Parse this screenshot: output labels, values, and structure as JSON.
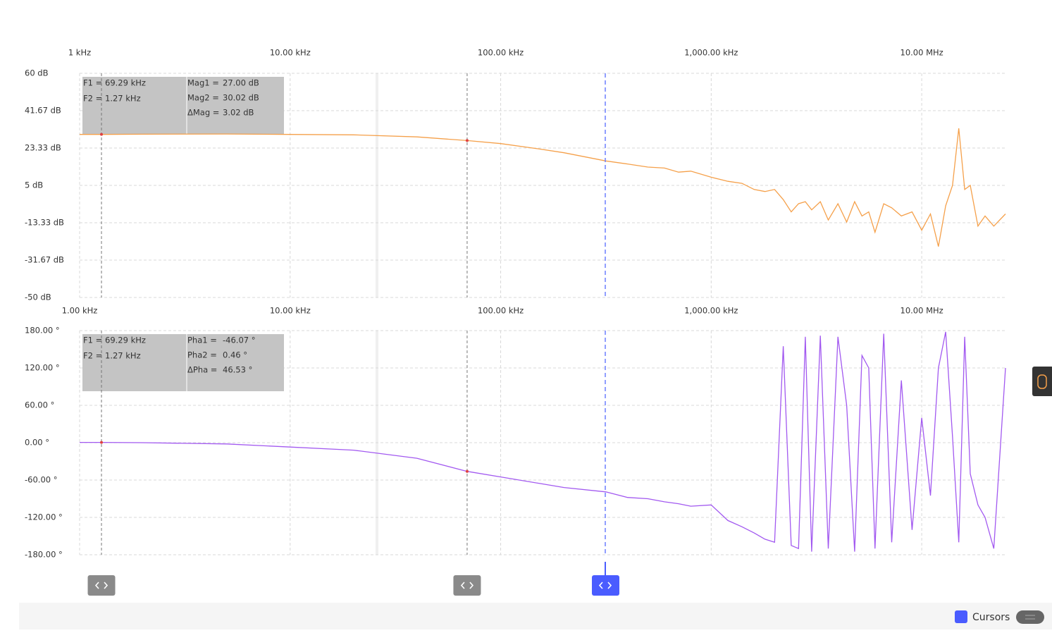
{
  "chart_data": [
    {
      "type": "line",
      "x_scale": "log",
      "grid": true,
      "xlim": [
        1000,
        25000000
      ],
      "xticks": [
        {
          "value": 1000,
          "label": "1 kHz"
        },
        {
          "value": 10000,
          "label": "10.00 kHz"
        },
        {
          "value": 100000,
          "label": "100.00 kHz"
        },
        {
          "value": 1000000,
          "label": "1,000.00 kHz"
        },
        {
          "value": 10000000,
          "label": "10.00 MHz"
        }
      ],
      "ylim": [
        -50,
        60
      ],
      "yticks": [
        {
          "value": 60,
          "label": "60 dB"
        },
        {
          "value": 41.67,
          "label": "41.67 dB"
        },
        {
          "value": 23.33,
          "label": "23.33 dB"
        },
        {
          "value": 5,
          "label": "5 dB"
        },
        {
          "value": -13.33,
          "label": "-13.33 dB"
        },
        {
          "value": -31.67,
          "label": "-31.67 dB"
        },
        {
          "value": -50,
          "label": "-50 dB"
        }
      ],
      "x": [
        1000,
        1270,
        2000,
        5000,
        10000,
        20000,
        40000,
        69290,
        100000,
        150000,
        200000,
        316000,
        400000,
        500000,
        600000,
        700000,
        800000,
        1000000,
        1200000,
        1400000,
        1600000,
        1800000,
        2000000,
        2200000,
        2400000,
        2600000,
        2800000,
        3000000,
        3300000,
        3600000,
        4000000,
        4400000,
        4800000,
        5200000,
        5600000,
        6000000,
        6600000,
        7200000,
        8000000,
        9000000,
        10000000,
        11000000,
        12000000,
        13000000,
        14000000,
        15000000,
        16000000,
        17000000,
        18500000,
        20000000,
        22000000,
        25000000
      ],
      "series": [
        {
          "color": "#f5a04a",
          "values": [
            30,
            30.02,
            30.1,
            30.2,
            30,
            29.8,
            28.8,
            27,
            25.5,
            23,
            21,
            17,
            15.5,
            14,
            13.5,
            11.5,
            12,
            9,
            7,
            6,
            3,
            2,
            3,
            -2,
            -8,
            -4,
            -3,
            -7,
            -3,
            -12,
            -4,
            -13,
            -3,
            -10,
            -8,
            -18,
            -4,
            -6,
            -10,
            -8,
            -17,
            -9,
            -25,
            -5,
            5,
            33,
            3,
            5,
            -15,
            -10,
            -15,
            -9
          ]
        }
      ],
      "cursors": [
        {
          "label": "F1 =",
          "x": 69290,
          "x_label": "69.29 kHz"
        },
        {
          "label": "F2 =",
          "x": 1270,
          "x_label": "1.27 kHz"
        }
      ],
      "readings": [
        [
          "Mag1 =",
          "27.00 dB"
        ],
        [
          "Mag2 =",
          "30.02 dB"
        ],
        [
          "ΔMag =",
          "3.02 dB"
        ]
      ]
    },
    {
      "type": "line",
      "x_scale": "log",
      "grid": true,
      "xlim": [
        1000,
        25000000
      ],
      "xticks": [
        {
          "value": 1000,
          "label": "1.00 kHz"
        },
        {
          "value": 10000,
          "label": "10.00 kHz"
        },
        {
          "value": 100000,
          "label": "100.00 kHz"
        },
        {
          "value": 1000000,
          "label": "1,000.00 kHz"
        },
        {
          "value": 10000000,
          "label": "10.00 MHz"
        }
      ],
      "ylim": [
        -180,
        180
      ],
      "yticks": [
        {
          "value": 180,
          "label": "180.00 °"
        },
        {
          "value": 120,
          "label": "120.00 °"
        },
        {
          "value": 60,
          "label": "60.00 °"
        },
        {
          "value": 0,
          "label": "0.00 °"
        },
        {
          "value": -60,
          "label": "-60.00 °"
        },
        {
          "value": -120,
          "label": "-120.00 °"
        },
        {
          "value": -180,
          "label": "-180.00 °"
        }
      ],
      "x": [
        1000,
        1270,
        2000,
        5000,
        10000,
        20000,
        40000,
        69290,
        100000,
        150000,
        200000,
        316000,
        400000,
        500000,
        600000,
        700000,
        800000,
        1000000,
        1200000,
        1400000,
        1600000,
        1800000,
        2000000,
        2200000,
        2400000,
        2600000,
        2800000,
        3000000,
        3300000,
        3600000,
        4000000,
        4400000,
        4800000,
        5200000,
        5600000,
        6000000,
        6600000,
        7200000,
        8000000,
        9000000,
        10000000,
        11000000,
        12000000,
        13000000,
        14000000,
        15000000,
        16000000,
        17000000,
        18500000,
        20000000,
        22000000,
        25000000
      ],
      "series": [
        {
          "color": "#a259f0",
          "values": [
            0.5,
            0.46,
            0,
            -2,
            -7,
            -12,
            -25,
            -46.07,
            -55,
            -65,
            -72,
            -79,
            -88,
            -90,
            -95,
            -98,
            -102,
            -100,
            -125,
            -135,
            -145,
            -155,
            -160,
            155,
            -165,
            -170,
            170,
            -175,
            172,
            -170,
            170,
            60,
            -175,
            140,
            120,
            -170,
            175,
            -160,
            100,
            -140,
            40,
            -85,
            120,
            178,
            10,
            -160,
            170,
            -50,
            -100,
            -120,
            -170,
            120
          ]
        }
      ],
      "cursors": [
        {
          "label": "F1 =",
          "x": 69290,
          "x_label": "69.29 kHz"
        },
        {
          "label": "F2 =",
          "x": 1270,
          "x_label": "1.27 kHz"
        }
      ],
      "readings": [
        [
          "Pha1 =",
          "-46.07 °"
        ],
        [
          "Pha2 =",
          "0.46 °"
        ],
        [
          "ΔPha =",
          "46.53 °"
        ]
      ]
    }
  ],
  "footer": {
    "legend_label": "Cursors"
  }
}
